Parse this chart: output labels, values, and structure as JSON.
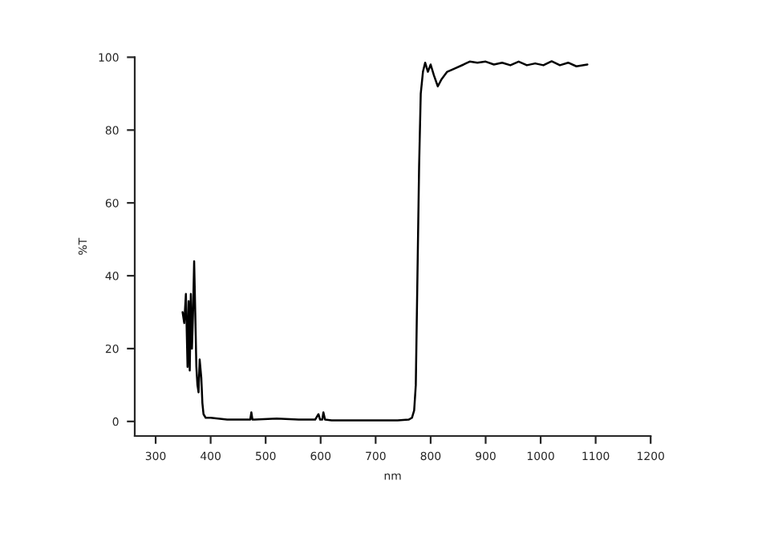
{
  "chart_data": {
    "type": "line",
    "xlabel": "nm",
    "ylabel": "%T",
    "x": [
      349,
      352,
      355,
      358,
      360,
      362,
      364,
      366,
      368,
      370,
      372,
      374,
      376,
      378,
      380,
      383,
      385,
      387,
      389,
      391,
      393,
      400,
      430,
      460,
      472,
      474,
      476,
      480,
      520,
      560,
      590,
      596,
      599,
      603,
      605,
      608,
      620,
      660,
      700,
      740,
      760,
      766,
      770,
      773,
      776,
      779,
      782,
      786,
      790,
      795,
      800,
      806,
      813,
      820,
      830,
      845,
      860,
      871,
      885,
      900,
      915,
      930,
      945,
      960,
      975,
      990,
      1005,
      1020,
      1035,
      1050,
      1065,
      1085
    ],
    "values": [
      30,
      27,
      35,
      15,
      33,
      14,
      35,
      20,
      30,
      44,
      30,
      15,
      10,
      8,
      17,
      12,
      5,
      2,
      1.5,
      1,
      1,
      1,
      0.5,
      0.5,
      0.5,
      2.5,
      0.5,
      0.5,
      0.8,
      0.5,
      0.5,
      2,
      0.5,
      0.5,
      2.5,
      0.5,
      0.3,
      0.3,
      0.3,
      0.3,
      0.5,
      1,
      3,
      10,
      40,
      70,
      90,
      96,
      98.5,
      96,
      98,
      95,
      92,
      94,
      96,
      97,
      98,
      98.8,
      98.5,
      98.8,
      98,
      98.5,
      97.8,
      98.8,
      97.8,
      98.3,
      97.8,
      98.9,
      97.8,
      98.5,
      97.5,
      98
    ],
    "color": "#000000",
    "xlim": [
      262,
      1200
    ],
    "xticks": [
      300,
      400,
      500,
      600,
      700,
      800,
      900,
      1000,
      1100,
      1200
    ],
    "ylim": [
      -4,
      100
    ],
    "yticks": [
      0,
      20,
      40,
      60,
      80,
      100
    ],
    "grid": false
  }
}
